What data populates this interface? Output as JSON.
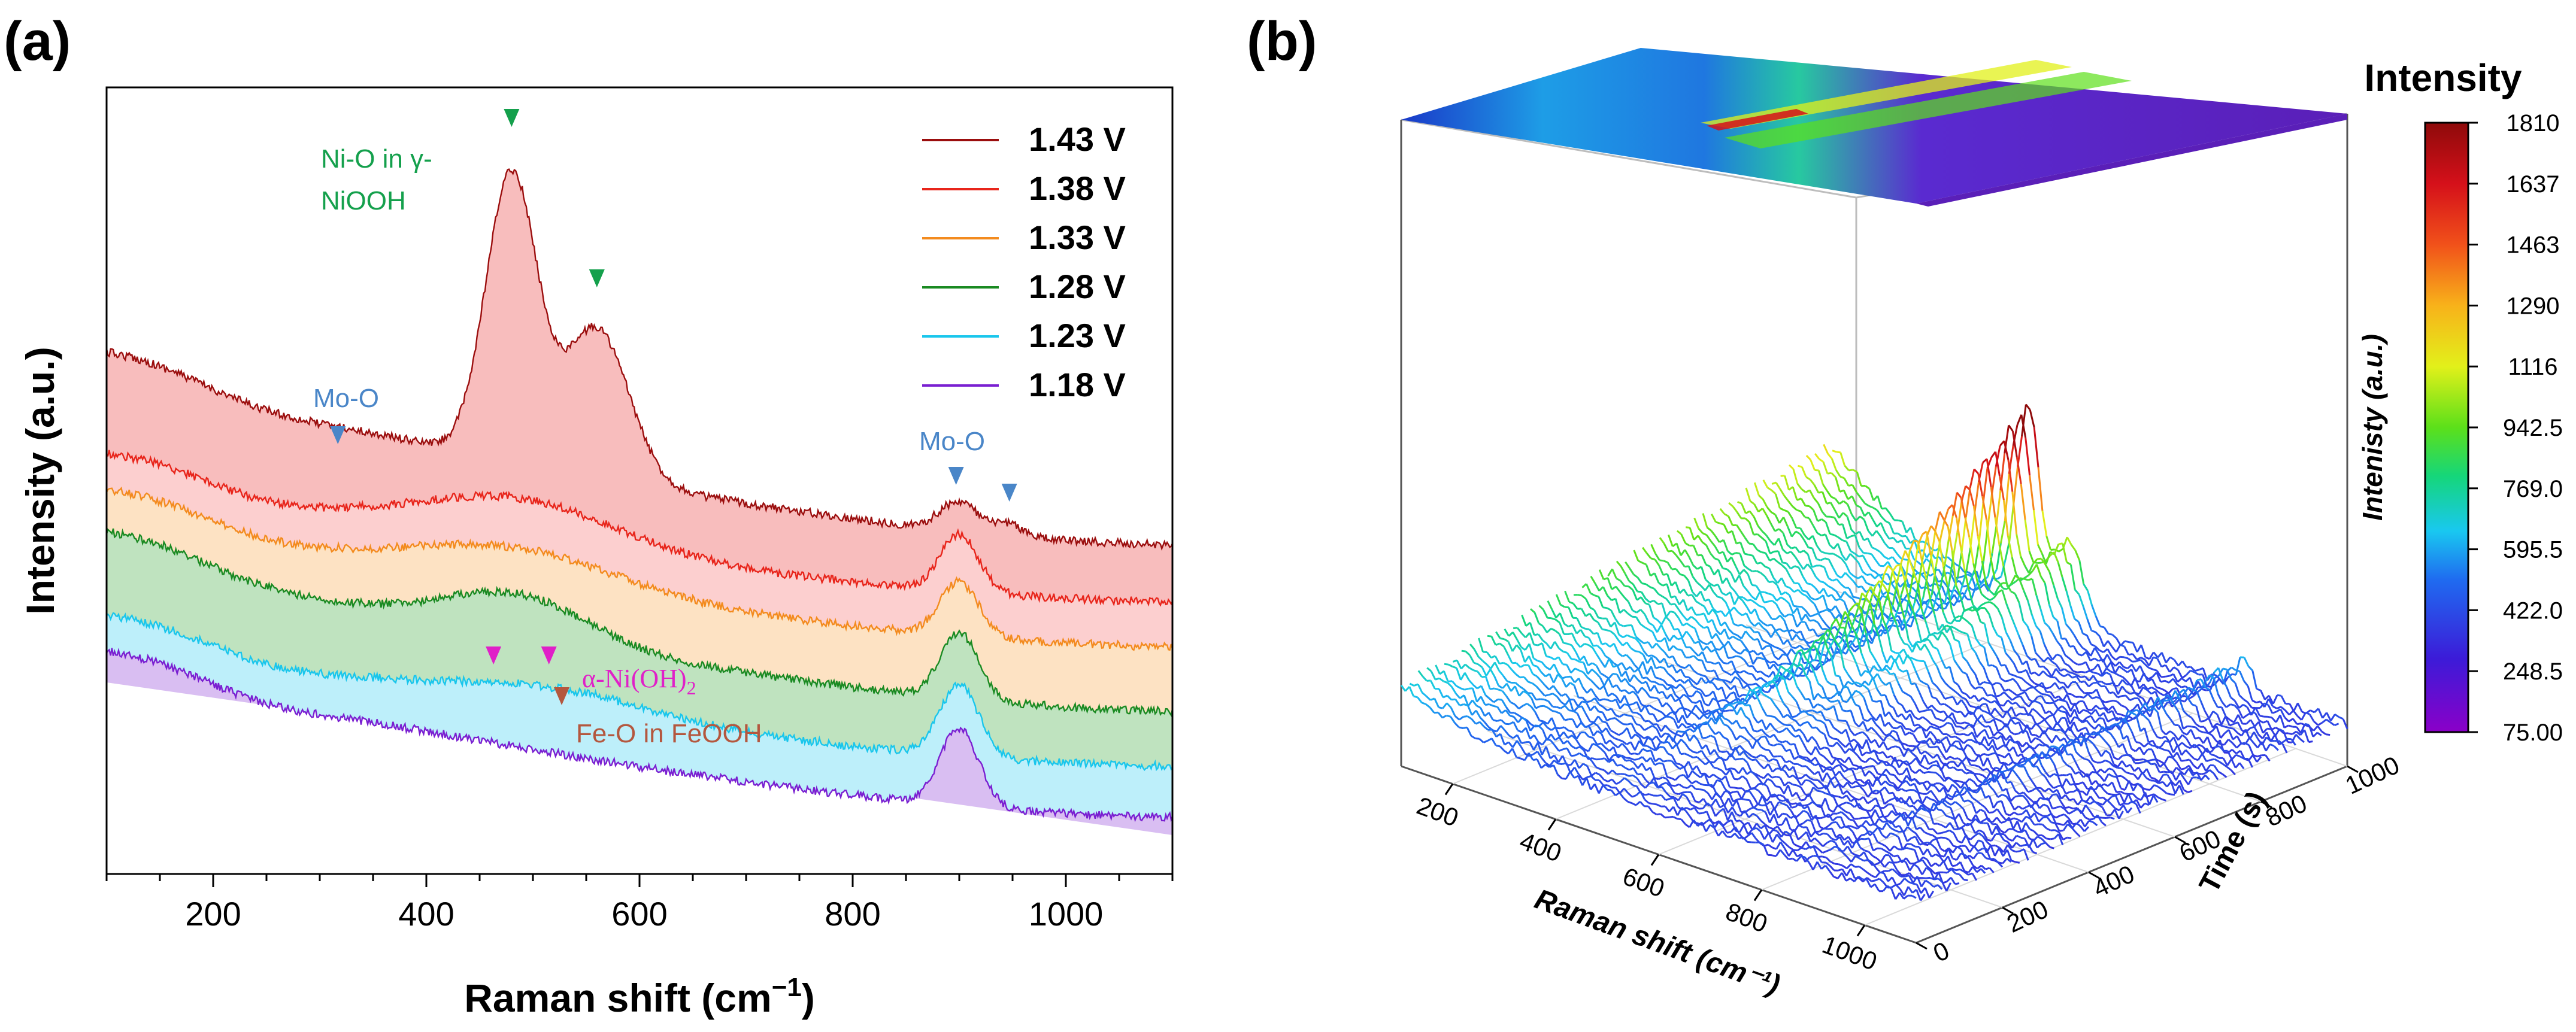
{
  "panel_a": {
    "label": "(a)",
    "xlabel": "Raman shift (cm",
    "xlabel_sup": "−1",
    "xlabel_close": ")",
    "ylabel": "Intensity (a.u.)",
    "legend": [
      "1.43 V",
      "1.38 V",
      "1.33 V",
      "1.28 V",
      "1.23 V",
      "1.18 V"
    ],
    "annotations": {
      "mo_o_1": "Mo-O",
      "mo_o_2": "Mo-O",
      "ni_o_line1": "Ni-O in γ-",
      "ni_o_line2": "NiOOH",
      "a_nioh2": "α-Ni(OH)",
      "a_nioh2_sub": "2",
      "fe_o": "Fe-O in FeOOH"
    }
  },
  "panel_b": {
    "label": "(b)",
    "colorbar_title": "Intensity",
    "colorbar_side_label": "Intenisty (a.u.)",
    "colorbar_ticks": [
      "1810",
      "1637",
      "1463",
      "1290",
      "1116",
      "942.5",
      "769.0",
      "595.5",
      "422.0",
      "248.5",
      "75.00"
    ],
    "x_axis_label": "Raman shift (cm⁻¹)",
    "x_ticks": [
      "200",
      "400",
      "600",
      "800",
      "1000"
    ],
    "time_axis_label": "Time (s)",
    "time_ticks": [
      "0",
      "200",
      "400",
      "600",
      "800",
      "1000"
    ]
  },
  "chart_data": [
    {
      "type": "line",
      "title": "",
      "xlabel": "Raman shift (cm−1)",
      "ylabel": "Intensity (a.u.)",
      "xlim": [
        100,
        1100
      ],
      "x_ticks": [
        200,
        400,
        600,
        800,
        1000
      ],
      "y_ticks_shown": false,
      "series": [
        {
          "name": "1.43 V",
          "color": "#9B0E0E",
          "fill": "#F8BDBD",
          "peaks_cm-1": [
            480,
            560,
            900
          ],
          "baseline_offset": 5
        },
        {
          "name": "1.38 V",
          "color": "#E8251B",
          "fill": "#FCCFCF",
          "peaks_cm-1": [
            490,
            900
          ],
          "baseline_offset": 4
        },
        {
          "name": "1.33 V",
          "color": "#F38B1E",
          "fill": "#FDE2C3",
          "peaks_cm-1": [
            490,
            900
          ],
          "baseline_offset": 3
        },
        {
          "name": "1.28 V",
          "color": "#1A8A22",
          "fill": "#BFE3BF",
          "peaks_cm-1": [
            460,
            510,
            900
          ],
          "baseline_offset": 2
        },
        {
          "name": "1.23 V",
          "color": "#19C6EC",
          "fill": "#BDEFFA",
          "peaks_cm-1": [
            520,
            900
          ],
          "baseline_offset": 1
        },
        {
          "name": "1.18 V",
          "color": "#7A1FD1",
          "fill": "#D9BEF2",
          "peaks_cm-1": [
            900
          ],
          "baseline_offset": 0
        }
      ],
      "markers": [
        {
          "x": 317,
          "label": "Mo-O",
          "color": "#4A86C8"
        },
        {
          "x": 480,
          "label": "Ni-O in γ-NiOOH",
          "color": "#14A04C"
        },
        {
          "x": 560,
          "label": "Ni-O in γ-NiOOH",
          "color": "#14A04C"
        },
        {
          "x": 897,
          "label": "Mo-O",
          "color": "#4A86C8"
        },
        {
          "x": 947,
          "label": "Mo-O",
          "color": "#4A86C8"
        },
        {
          "x": 463,
          "label": "α-Ni(OH)2",
          "color": "#E020C8"
        },
        {
          "x": 515,
          "label": "α-Ni(OH)2",
          "color": "#E020C8"
        },
        {
          "x": 527,
          "label": "Fe-O in FeOOH",
          "color": "#B4573E"
        }
      ]
    },
    {
      "type": "waterfall-3d",
      "xlabel": "Raman shift (cm⁻¹)",
      "ylabel": "Time (s)",
      "zlabel": "Intenisty (a.u.)",
      "x_range": [
        100,
        1100
      ],
      "time_range": [
        0,
        1000
      ],
      "x_ticks": [
        200,
        400,
        600,
        800,
        1000
      ],
      "time_ticks": [
        0,
        200,
        400,
        600,
        800,
        1000
      ],
      "colorbar_range": [
        75.0,
        1810
      ],
      "colorbar_ticks": [
        1810,
        1637,
        1463,
        1290,
        1116,
        942.5,
        769.0,
        595.5,
        422.0,
        248.5,
        75.0
      ],
      "max_intensity_position": {
        "raman_shift": 480,
        "time": 1000
      }
    }
  ]
}
